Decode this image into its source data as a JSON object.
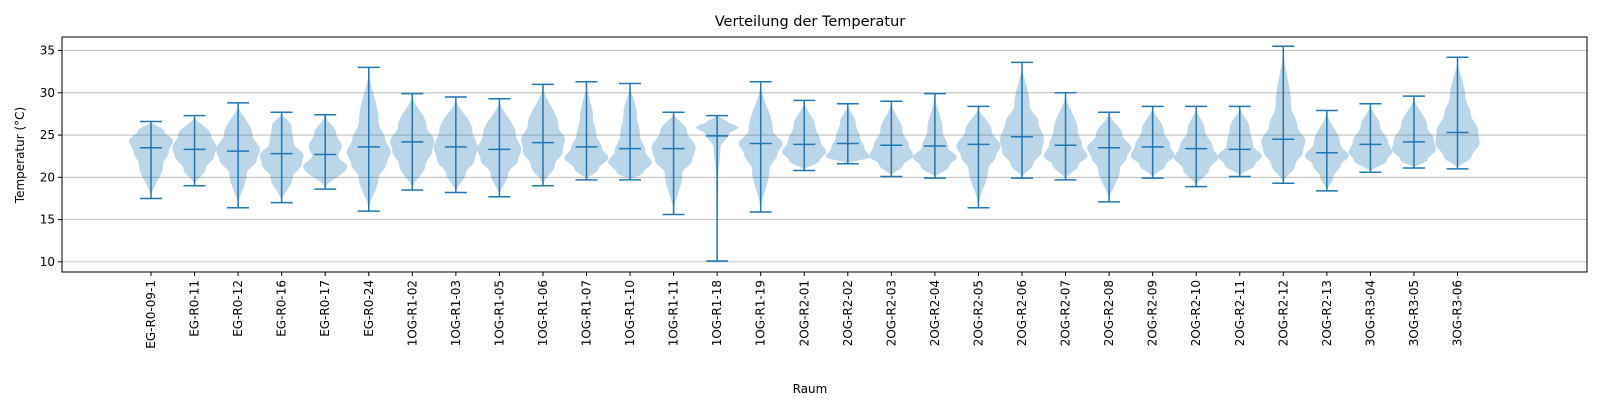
{
  "chart_data": {
    "type": "violin",
    "title": "Verteilung der Temperatur",
    "xlabel": "Raum",
    "ylabel": "Temperatur (°C)",
    "ylim": [
      8.8,
      36.6
    ],
    "yticks": [
      10,
      15,
      20,
      25,
      30,
      35
    ],
    "grid": "horizontal",
    "colors": {
      "body": "#1f77b4",
      "line": "#1f77b4",
      "grid": "#b0b0b0"
    },
    "categories": [
      "EG-R0-09-1",
      "EG-R0-11",
      "EG-R0-12",
      "EG-R0-16",
      "EG-R0-17",
      "EG-R0-24",
      "1OG-R1-02",
      "1OG-R1-03",
      "1OG-R1-05",
      "1OG-R1-06",
      "1OG-R1-07",
      "1OG-R1-10",
      "1OG-R1-11",
      "1OG-R1-18",
      "1OG-R1-19",
      "2OG-R2-01",
      "2OG-R2-02",
      "2OG-R2-03",
      "2OG-R2-04",
      "2OG-R2-05",
      "2OG-R2-06",
      "2OG-R2-07",
      "2OG-R2-08",
      "2OG-R2-09",
      "2OG-R2-10",
      "2OG-R2-11",
      "2OG-R2-12",
      "2OG-R2-13",
      "3OG-R3-04",
      "3OG-R3-05",
      "3OG-R3-06"
    ],
    "series": [
      {
        "min": 17.5,
        "mean": 23.5,
        "max": 26.6,
        "density": [
          [
            21.5,
            0.55
          ],
          [
            23,
            0.8
          ],
          [
            24.3,
            1.0
          ],
          [
            25.5,
            0.6
          ]
        ]
      },
      {
        "min": 19.0,
        "mean": 23.3,
        "max": 27.3,
        "density": [
          [
            21,
            0.5
          ],
          [
            22.5,
            0.9
          ],
          [
            23.5,
            1.0
          ],
          [
            25,
            0.75
          ]
        ]
      },
      {
        "min": 16.4,
        "mean": 23.1,
        "max": 28.8,
        "density": [
          [
            20.5,
            0.4
          ],
          [
            22,
            0.85
          ],
          [
            23.3,
            1.0
          ],
          [
            25,
            0.65
          ]
        ]
      },
      {
        "min": 17.0,
        "mean": 22.8,
        "max": 27.7,
        "density": [
          [
            20,
            0.5
          ],
          [
            21.5,
            0.9
          ],
          [
            22.6,
            1.0
          ],
          [
            24,
            0.55
          ],
          [
            26,
            0.45
          ]
        ]
      },
      {
        "min": 18.6,
        "mean": 22.7,
        "max": 27.4,
        "density": [
          [
            21.3,
            1.0
          ],
          [
            22.5,
            0.6
          ],
          [
            23.7,
            0.75
          ],
          [
            25.2,
            0.5
          ]
        ]
      },
      {
        "min": 16.0,
        "mean": 23.6,
        "max": 33.0,
        "density": [
          [
            20,
            0.45
          ],
          [
            21.5,
            0.8
          ],
          [
            23,
            1.0
          ],
          [
            24.5,
            0.75
          ],
          [
            26.5,
            0.45
          ]
        ]
      },
      {
        "min": 18.5,
        "mean": 24.2,
        "max": 29.9,
        "density": [
          [
            21.5,
            0.6
          ],
          [
            23,
            0.9
          ],
          [
            24.3,
            1.0
          ],
          [
            26,
            0.65
          ]
        ]
      },
      {
        "min": 18.2,
        "mean": 23.6,
        "max": 29.5,
        "density": [
          [
            20.5,
            0.45
          ],
          [
            22,
            0.85
          ],
          [
            23.5,
            1.0
          ],
          [
            25.5,
            0.75
          ]
        ]
      },
      {
        "min": 17.7,
        "mean": 23.3,
        "max": 29.3,
        "density": [
          [
            20.5,
            0.4
          ],
          [
            22,
            0.85
          ],
          [
            23.3,
            1.0
          ],
          [
            25,
            0.75
          ]
        ]
      },
      {
        "min": 19.0,
        "mean": 24.1,
        "max": 31.0,
        "density": [
          [
            21.5,
            0.55
          ],
          [
            23,
            0.9
          ],
          [
            24.5,
            1.0
          ],
          [
            26,
            0.7
          ]
        ]
      },
      {
        "min": 19.7,
        "mean": 23.6,
        "max": 31.3,
        "density": [
          [
            21,
            0.55
          ],
          [
            22.3,
            1.0
          ],
          [
            23.5,
            0.7
          ],
          [
            25,
            0.45
          ],
          [
            27,
            0.3
          ]
        ]
      },
      {
        "min": 19.7,
        "mean": 23.4,
        "max": 31.1,
        "density": [
          [
            20.5,
            0.6
          ],
          [
            21.8,
            1.0
          ],
          [
            23,
            0.7
          ],
          [
            25,
            0.45
          ],
          [
            27.5,
            0.3
          ]
        ]
      },
      {
        "min": 15.6,
        "mean": 23.4,
        "max": 27.7,
        "density": [
          [
            20.5,
            0.4
          ],
          [
            22,
            0.85
          ],
          [
            23.5,
            1.0
          ],
          [
            25.5,
            0.6
          ]
        ]
      },
      {
        "min": 10.1,
        "mean": 24.9,
        "max": 27.3,
        "density": [
          [
            20,
            0.05
          ],
          [
            23.5,
            0.15
          ],
          [
            25.2,
            0.55
          ],
          [
            25.9,
            1.0
          ],
          [
            26.6,
            0.45
          ]
        ]
      },
      {
        "min": 15.9,
        "mean": 24.0,
        "max": 31.3,
        "density": [
          [
            21,
            0.4
          ],
          [
            22.7,
            0.75
          ],
          [
            24,
            1.0
          ],
          [
            25.5,
            0.55
          ]
        ]
      },
      {
        "min": 20.8,
        "mean": 23.9,
        "max": 29.1,
        "density": [
          [
            22,
            0.7
          ],
          [
            23,
            1.0
          ],
          [
            24.2,
            0.75
          ],
          [
            26,
            0.5
          ]
        ]
      },
      {
        "min": 21.6,
        "mean": 24.0,
        "max": 28.7,
        "density": [
          [
            22.4,
            1.0
          ],
          [
            23.5,
            0.75
          ],
          [
            24.7,
            0.55
          ],
          [
            26.5,
            0.35
          ]
        ]
      },
      {
        "min": 20.1,
        "mean": 23.8,
        "max": 29.0,
        "density": [
          [
            21.5,
            0.55
          ],
          [
            22.5,
            1.0
          ],
          [
            23.8,
            0.8
          ],
          [
            25.5,
            0.5
          ]
        ]
      },
      {
        "min": 19.9,
        "mean": 23.7,
        "max": 29.9,
        "density": [
          [
            21.3,
            0.65
          ],
          [
            22.4,
            1.0
          ],
          [
            23.5,
            0.6
          ],
          [
            25.5,
            0.35
          ]
        ]
      },
      {
        "min": 16.4,
        "mean": 23.9,
        "max": 28.4,
        "density": [
          [
            21,
            0.45
          ],
          [
            22.5,
            0.8
          ],
          [
            23.7,
            1.0
          ],
          [
            25.5,
            0.6
          ]
        ]
      },
      {
        "min": 19.9,
        "mean": 24.8,
        "max": 33.6,
        "density": [
          [
            21.5,
            0.5
          ],
          [
            23,
            0.9
          ],
          [
            24.5,
            1.0
          ],
          [
            26.5,
            0.75
          ],
          [
            28.5,
            0.35
          ]
        ]
      },
      {
        "min": 19.7,
        "mean": 23.8,
        "max": 30.0,
        "density": [
          [
            21.5,
            0.6
          ],
          [
            22.5,
            1.0
          ],
          [
            23.8,
            0.75
          ],
          [
            25.5,
            0.55
          ]
        ]
      },
      {
        "min": 17.1,
        "mean": 23.5,
        "max": 27.7,
        "density": [
          [
            21,
            0.5
          ],
          [
            22.3,
            0.8
          ],
          [
            23.5,
            1.0
          ],
          [
            25,
            0.6
          ]
        ]
      },
      {
        "min": 19.9,
        "mean": 23.6,
        "max": 28.4,
        "density": [
          [
            21.5,
            0.6
          ],
          [
            22.5,
            1.0
          ],
          [
            23.8,
            0.8
          ],
          [
            25.5,
            0.5
          ]
        ]
      },
      {
        "min": 18.9,
        "mean": 23.4,
        "max": 28.4,
        "density": [
          [
            21,
            0.6
          ],
          [
            22.3,
            1.0
          ],
          [
            23.6,
            0.75
          ],
          [
            25.5,
            0.4
          ]
        ]
      },
      {
        "min": 20.1,
        "mean": 23.3,
        "max": 28.4,
        "density": [
          [
            21.5,
            0.7
          ],
          [
            22.5,
            1.0
          ],
          [
            23.8,
            0.6
          ],
          [
            25.8,
            0.45
          ]
        ]
      },
      {
        "min": 19.3,
        "mean": 24.5,
        "max": 35.5,
        "density": [
          [
            21.5,
            0.55
          ],
          [
            23,
            0.9
          ],
          [
            24.3,
            1.0
          ],
          [
            26,
            0.65
          ],
          [
            28.5,
            0.35
          ]
        ]
      },
      {
        "min": 18.4,
        "mean": 22.9,
        "max": 27.9,
        "density": [
          [
            20,
            0.3
          ],
          [
            21.5,
            0.65
          ],
          [
            22.5,
            1.0
          ],
          [
            24,
            0.6
          ]
        ]
      },
      {
        "min": 20.6,
        "mean": 23.9,
        "max": 28.7,
        "density": [
          [
            22,
            0.75
          ],
          [
            23,
            1.0
          ],
          [
            24.2,
            0.8
          ],
          [
            26,
            0.45
          ]
        ]
      },
      {
        "min": 21.1,
        "mean": 24.2,
        "max": 29.6,
        "density": [
          [
            22,
            0.6
          ],
          [
            23.3,
            1.0
          ],
          [
            24.5,
            0.9
          ],
          [
            26,
            0.6
          ]
        ]
      },
      {
        "min": 21.0,
        "mean": 25.3,
        "max": 34.2,
        "density": [
          [
            22.5,
            0.65
          ],
          [
            24,
            1.0
          ],
          [
            25.5,
            0.95
          ],
          [
            27.5,
            0.6
          ],
          [
            29.5,
            0.35
          ]
        ]
      }
    ]
  }
}
